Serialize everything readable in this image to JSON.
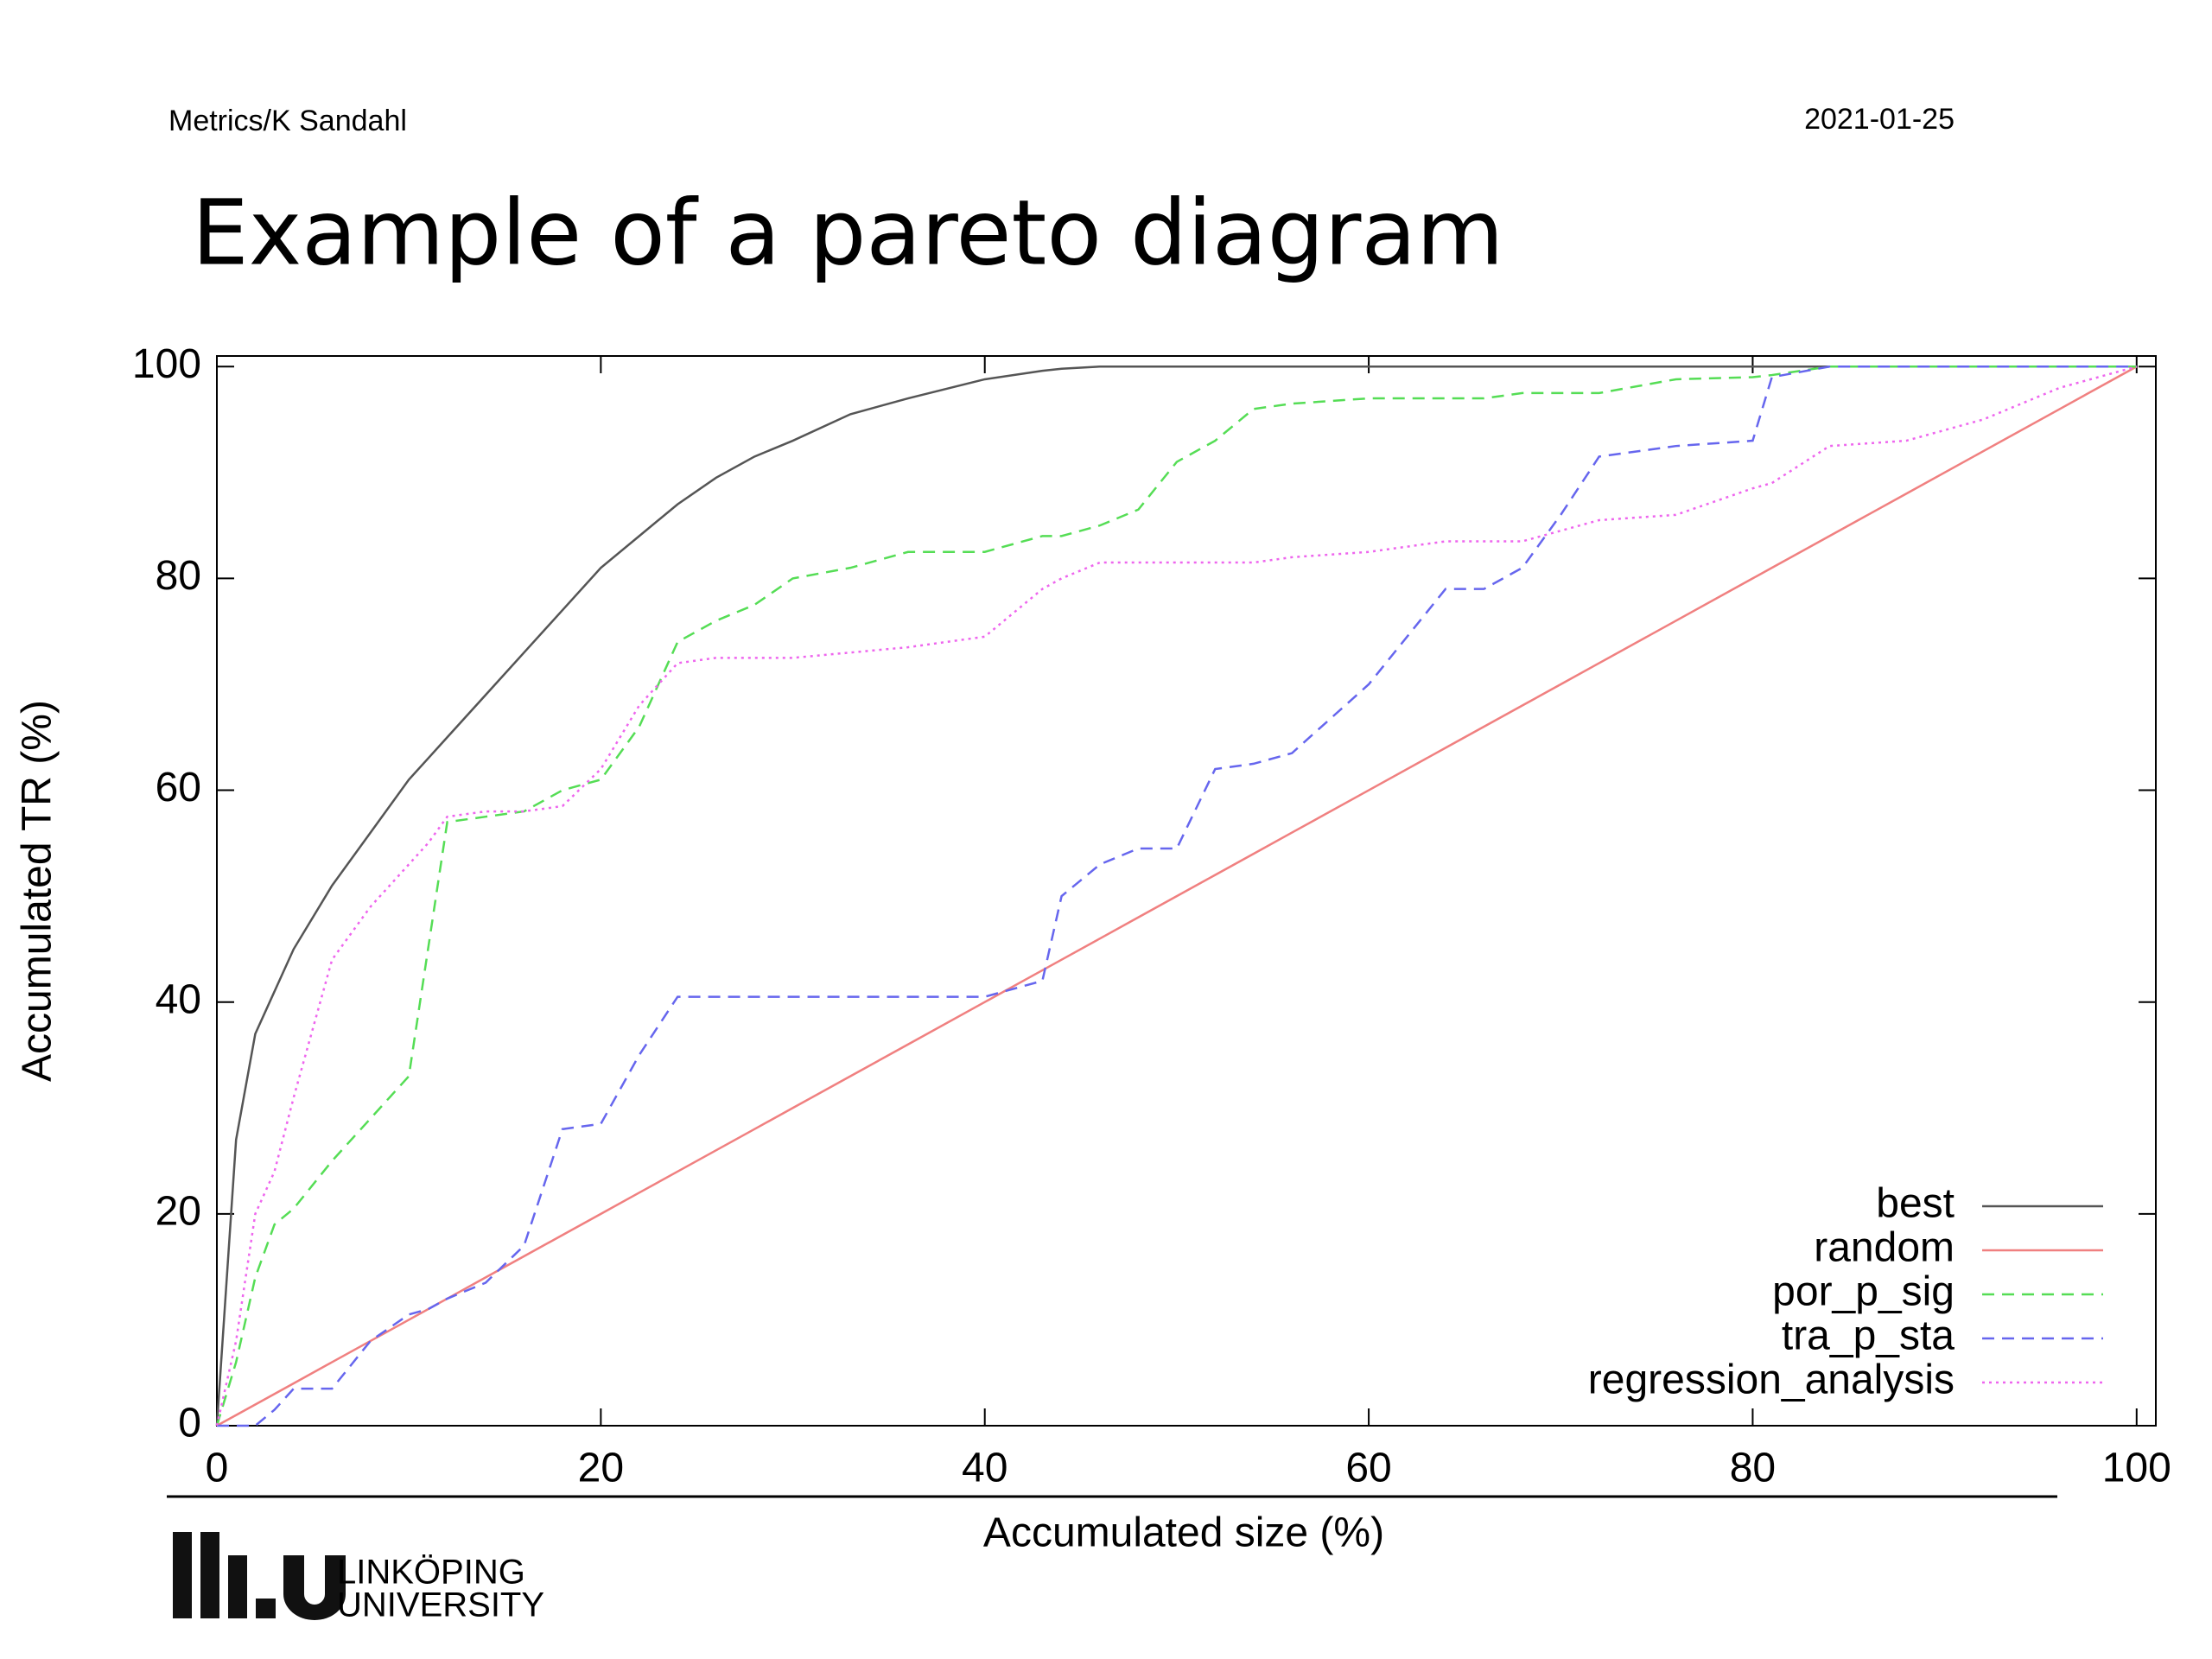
{
  "header": {
    "left": "Metrics/K Sandahl",
    "right": "2021-01-25"
  },
  "title": "Example of a pareto diagram",
  "footer": {
    "logo_line1": "LINKÖPING",
    "logo_line2": "UNIVERSITY"
  },
  "chart_data": {
    "type": "line",
    "x_label": "Accumulated size (%)",
    "y_label": "Accumulated TR (%)",
    "xlim": [
      0,
      101
    ],
    "ylim": [
      0,
      101
    ],
    "xticks": [
      0,
      20,
      40,
      60,
      80,
      100
    ],
    "yticks": [
      0,
      20,
      40,
      60,
      80,
      100
    ],
    "grid": false,
    "legend": "bottom-right",
    "x": [
      0,
      1,
      2,
      3,
      4,
      6,
      8,
      10,
      11,
      12,
      14,
      16,
      18,
      20,
      22,
      24,
      26,
      28,
      30,
      33,
      36,
      40,
      43,
      44,
      46,
      48,
      50,
      52,
      54,
      56,
      60,
      64,
      66,
      68,
      70,
      72,
      76,
      80,
      81,
      84,
      88,
      92,
      96,
      100
    ],
    "series": [
      {
        "name": "best",
        "color": "#555555",
        "line_style": "solid",
        "values": [
          0,
          27,
          37,
          41,
          45,
          51,
          56,
          61,
          63,
          65,
          69,
          73,
          77,
          81,
          84,
          87,
          89.5,
          91.5,
          93,
          95.5,
          97,
          98.8,
          99.6,
          99.8,
          100,
          100,
          100,
          100,
          100,
          100,
          100,
          100,
          100,
          100,
          100,
          100,
          100,
          100,
          100,
          100,
          100,
          100,
          100,
          100
        ]
      },
      {
        "name": "random",
        "color": "#f08080",
        "line_style": "solid",
        "values": [
          0,
          1,
          2,
          3,
          4,
          6,
          8,
          10,
          11,
          12,
          14,
          16,
          18,
          20,
          22,
          24,
          26,
          28,
          30,
          33,
          36,
          40,
          43,
          44,
          46,
          48,
          50,
          52,
          54,
          56,
          60,
          64,
          66,
          68,
          70,
          72,
          76,
          80,
          81,
          84,
          88,
          92,
          96,
          100
        ]
      },
      {
        "name": "por_p_sig",
        "color": "#55dd55",
        "line_style": "dashed",
        "values": [
          0,
          6,
          14,
          19,
          20.5,
          25,
          29,
          33,
          45,
          57,
          57.5,
          58,
          60,
          61,
          66,
          74,
          76,
          77.5,
          80,
          81,
          82.5,
          82.5,
          84,
          84,
          85,
          86.5,
          91,
          93,
          96,
          96.5,
          97,
          97,
          97,
          97.5,
          97.5,
          97.5,
          98.8,
          99,
          99.2,
          100,
          100,
          100,
          100,
          100
        ]
      },
      {
        "name": "tra_p_sta",
        "color": "#6666ee",
        "line_style": "dashed",
        "values": [
          0,
          0,
          0,
          1.5,
          3.5,
          3.5,
          8,
          10.5,
          11,
          12,
          13.5,
          17,
          28,
          28.5,
          35,
          40.5,
          40.5,
          40.5,
          40.5,
          40.5,
          40.5,
          40.5,
          42,
          50,
          53,
          54.5,
          54.5,
          62,
          62.5,
          63.5,
          70,
          79,
          79,
          81,
          86,
          91.5,
          92.5,
          93,
          99,
          100,
          100,
          100,
          100,
          100
        ]
      },
      {
        "name": "regression_analysis",
        "color": "#ee66ee",
        "line_style": "dotted",
        "values": [
          0,
          8,
          20,
          24,
          31,
          44,
          49,
          53,
          55,
          57.5,
          58,
          58,
          58.5,
          62,
          68,
          72,
          72.5,
          72.5,
          72.5,
          73,
          73.5,
          74.5,
          79,
          80,
          81.5,
          81.5,
          81.5,
          81.5,
          81.5,
          82,
          82.5,
          83.5,
          83.5,
          83.5,
          84.5,
          85.5,
          86,
          88.5,
          89,
          92.5,
          93,
          95,
          98,
          100
        ]
      }
    ]
  }
}
